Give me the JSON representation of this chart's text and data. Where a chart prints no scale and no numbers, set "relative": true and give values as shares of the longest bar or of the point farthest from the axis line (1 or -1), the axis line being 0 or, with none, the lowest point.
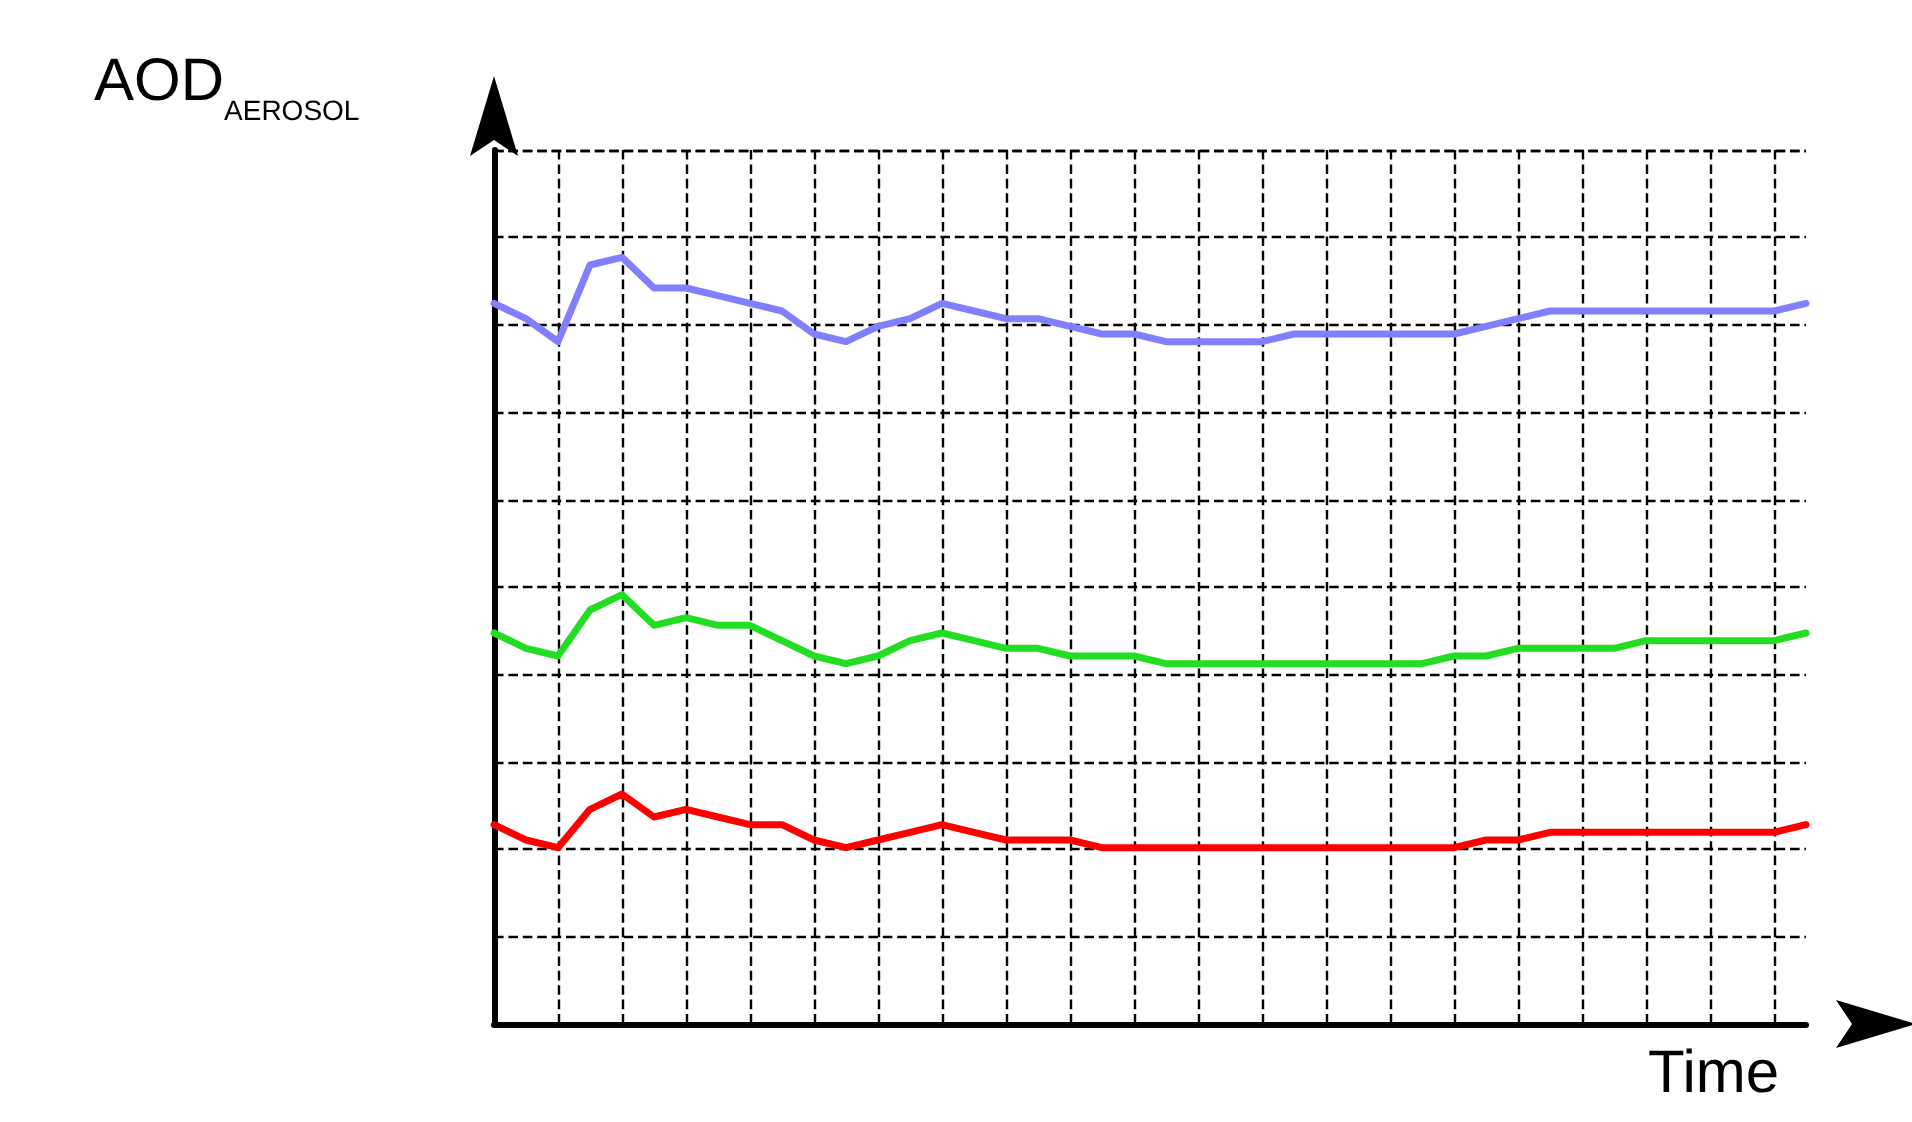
{
  "chart_data": {
    "type": "line",
    "relative": true,
    "ylabel": "AOD$_{AEROSOL}$",
    "xlabel": "Time",
    "grid": true,
    "marker": "none",
    "line_style": "solid",
    "categories": [
      null,
      null,
      null,
      null,
      null,
      null,
      null,
      null,
      null,
      null,
      null,
      null,
      null,
      null,
      null,
      null,
      null,
      null,
      null,
      null,
      null,
      null,
      null,
      null,
      null,
      null,
      null,
      null,
      null,
      null,
      null,
      null,
      null,
      null,
      null,
      null,
      null,
      null,
      null,
      null,
      null,
      null
    ],
    "series": [
      {
        "color": "#8080ff",
        "values": [
          0.94,
          0.92,
          0.89,
          0.99,
          1,
          0.96,
          0.96,
          0.95,
          0.94,
          0.93,
          0.9,
          0.89,
          0.91,
          0.92,
          0.94,
          0.93,
          0.92,
          0.92,
          0.91,
          0.9,
          0.9,
          0.89,
          0.89,
          0.89,
          0.89,
          0.9,
          0.9,
          0.9,
          0.9,
          0.9,
          0.9,
          0.91,
          0.92,
          0.93,
          0.93,
          0.93,
          0.93,
          0.93,
          0.93,
          0.93,
          0.93,
          0.94
        ]
      },
      {
        "color": "#22dd22",
        "values": [
          0.51,
          0.49,
          0.48,
          0.54,
          0.56,
          0.52,
          0.53,
          0.52,
          0.52,
          0.5,
          0.48,
          0.47,
          0.48,
          0.5,
          0.51,
          0.5,
          0.49,
          0.49,
          0.48,
          0.48,
          0.48,
          0.47,
          0.47,
          0.47,
          0.47,
          0.47,
          0.47,
          0.47,
          0.47,
          0.47,
          0.48,
          0.48,
          0.49,
          0.49,
          0.49,
          0.49,
          0.5,
          0.5,
          0.5,
          0.5,
          0.5,
          0.51
        ]
      },
      {
        "color": "#ff0000",
        "values": [
          0.26,
          0.24,
          0.23,
          0.28,
          0.3,
          0.27,
          0.28,
          0.27,
          0.26,
          0.26,
          0.24,
          0.23,
          0.24,
          0.25,
          0.26,
          0.25,
          0.24,
          0.24,
          0.24,
          0.23,
          0.23,
          0.23,
          0.23,
          0.23,
          0.23,
          0.23,
          0.23,
          0.23,
          0.23,
          0.23,
          0.23,
          0.24,
          0.24,
          0.25,
          0.25,
          0.25,
          0.25,
          0.25,
          0.25,
          0.25,
          0.25,
          0.26
        ]
      }
    ]
  }
}
